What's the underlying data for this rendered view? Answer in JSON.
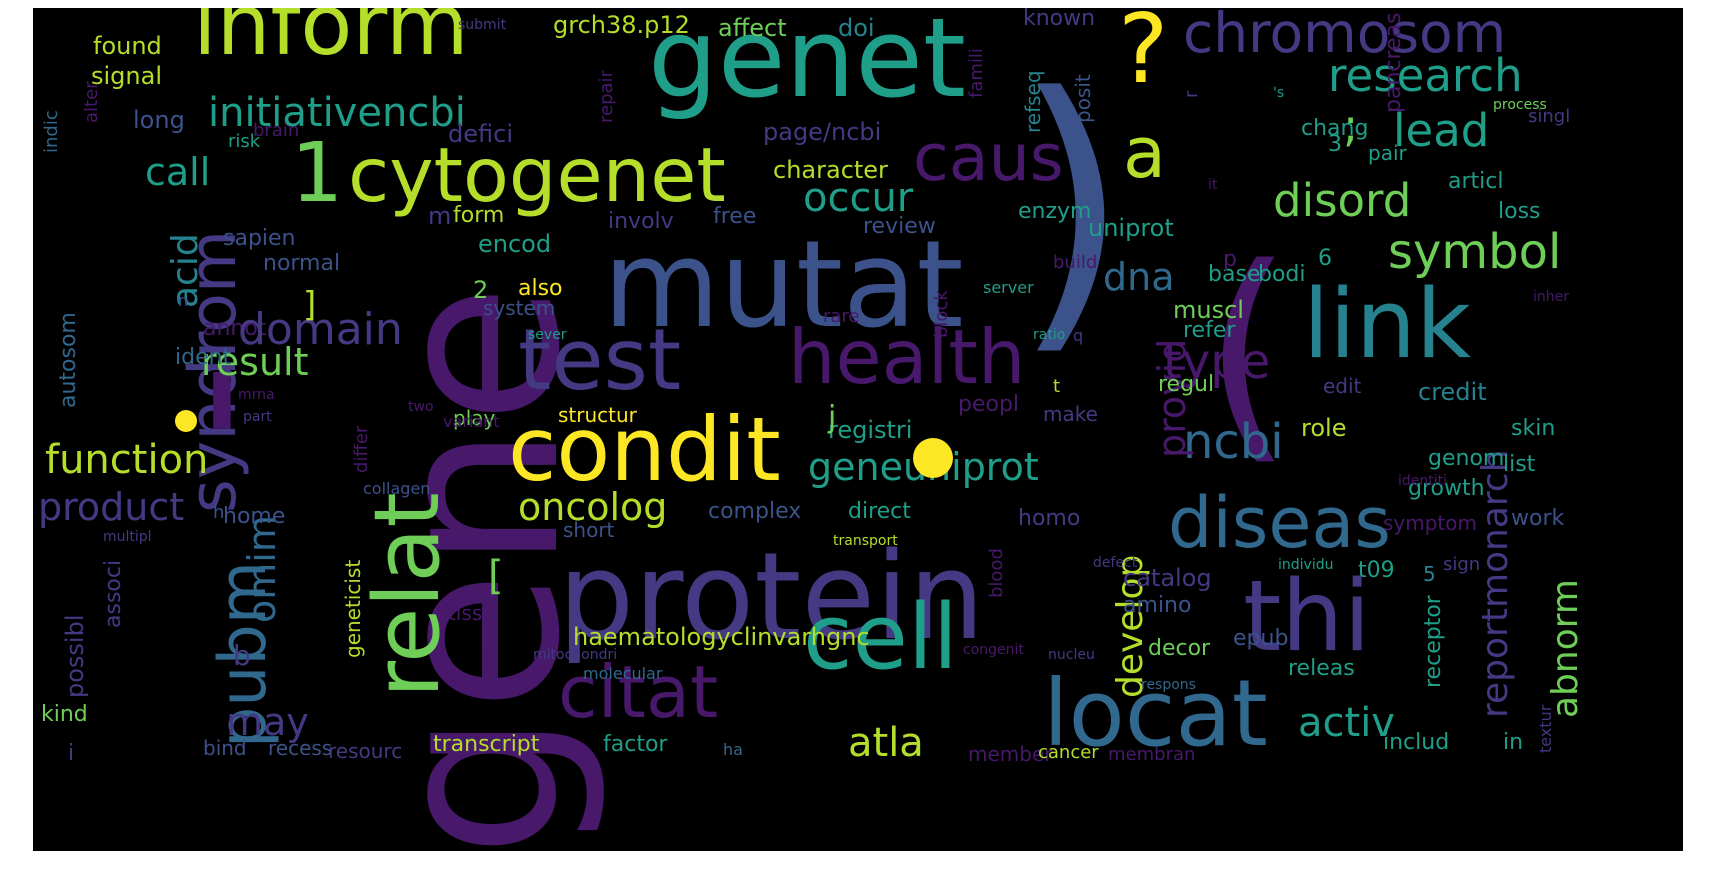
{
  "palette": {
    "purple": "#48186a",
    "indigo": "#443983",
    "blue": "#3b528b",
    "steel": "#31688e",
    "teal": "#26828e",
    "sea": "#1f9e89",
    "green": "#35b779",
    "lime": "#6ece58",
    "chartreuse": "#b5de2b",
    "yellow": "#fde725"
  },
  "words": [
    {
      "text": "gene",
      "color": "purple"
    },
    {
      "text": "mutat",
      "color": "blue"
    },
    {
      "text": "protein",
      "color": "indigo"
    },
    {
      "text": "genet",
      "color": "sea"
    },
    {
      "text": "inform",
      "color": "chartreuse"
    },
    {
      "text": "test",
      "color": "indigo"
    },
    {
      "text": "health",
      "color": "purple"
    },
    {
      "text": "condit",
      "color": "yellow"
    },
    {
      "text": "cytogenet",
      "color": "chartreuse"
    },
    {
      "text": "relat",
      "color": "lime"
    },
    {
      "text": "link",
      "color": "teal"
    },
    {
      "text": "thi",
      "color": "indigo"
    },
    {
      "text": "cell",
      "color": "sea"
    },
    {
      "text": "locat",
      "color": "steel"
    },
    {
      "text": "diseas",
      "color": "steel"
    },
    {
      "text": "citat",
      "color": "purple"
    },
    {
      "text": "caus",
      "color": "purple"
    },
    {
      "text": "pubm",
      "color": "steel"
    },
    {
      "text": "syndrom",
      "color": "indigo"
    },
    {
      "text": "chromosom",
      "color": "indigo"
    },
    {
      "text": "research",
      "color": "sea"
    },
    {
      "text": "?",
      "color": "yellow"
    },
    {
      "text": "(",
      "color": "purple"
    },
    {
      "text": ")",
      "color": "blue"
    },
    {
      "text": "a",
      "color": "chartreuse"
    },
    {
      "text": "'",
      "color": "purple"
    },
    {
      "text": "1",
      "color": "lime"
    },
    {
      "text": ";",
      "color": "lime"
    },
    {
      "text": "lead",
      "color": "sea"
    },
    {
      "text": "symbol",
      "color": "lime"
    },
    {
      "text": "disord",
      "color": "lime"
    },
    {
      "text": "initiativencbi",
      "color": "sea"
    },
    {
      "text": "call",
      "color": "sea"
    },
    {
      "text": "occur",
      "color": "sea"
    },
    {
      "text": "function",
      "color": "chartreuse"
    },
    {
      "text": "result",
      "color": "lime"
    },
    {
      "text": "product",
      "color": "indigo"
    },
    {
      "text": "oncolog",
      "color": "chartreuse"
    },
    {
      "text": "geneuniprot",
      "color": "sea"
    },
    {
      "text": "ncbi",
      "color": "steel"
    },
    {
      "text": "type",
      "color": "purple"
    },
    {
      "text": "provid",
      "color": "purple"
    },
    {
      "text": "dna",
      "color": "steel"
    },
    {
      "text": "omim",
      "color": "steel"
    },
    {
      "text": "may",
      "color": "indigo"
    },
    {
      "text": "atla",
      "color": "chartreuse"
    },
    {
      "text": "activ",
      "color": "sea"
    },
    {
      "text": "develop",
      "color": "chartreuse"
    },
    {
      "text": "reportmonarch",
      "color": "indigo"
    },
    {
      "text": "abnorm",
      "color": "lime"
    },
    {
      "text": "acid",
      "color": "teal"
    },
    {
      "text": "haematologyclinvarhgnc",
      "color": "chartreuse"
    },
    {
      "text": "catalog",
      "color": "indigo"
    },
    {
      "text": "grch38.p12",
      "color": "chartreuse"
    },
    {
      "text": "affect",
      "color": "lime"
    },
    {
      "text": "doi",
      "color": "teal"
    },
    {
      "text": "found",
      "color": "chartreuse"
    },
    {
      "text": "signal",
      "color": "chartreuse"
    },
    {
      "text": "long",
      "color": "blue"
    },
    {
      "text": "defici",
      "color": "indigo"
    },
    {
      "text": "page/ncbi",
      "color": "indigo"
    },
    {
      "text": "character",
      "color": "chartreuse"
    },
    {
      "text": "form",
      "color": "chartreuse"
    },
    {
      "text": "involv",
      "color": "indigo"
    },
    {
      "text": "free",
      "color": "blue"
    },
    {
      "text": "enzym",
      "color": "sea"
    },
    {
      "text": "uniprot",
      "color": "sea"
    },
    {
      "text": "encod",
      "color": "sea"
    },
    {
      "text": "sapien",
      "color": "blue"
    },
    {
      "text": "review",
      "color": "blue"
    },
    {
      "text": "normal",
      "color": "blue"
    },
    {
      "text": "also",
      "color": "yellow"
    },
    {
      "text": "system",
      "color": "blue"
    },
    {
      "text": "annot",
      "color": "purple"
    },
    {
      "text": "base",
      "color": "sea"
    },
    {
      "text": "bodi",
      "color": "sea"
    },
    {
      "text": "muscl",
      "color": "lime"
    },
    {
      "text": "refer",
      "color": "sea"
    },
    {
      "text": "regul",
      "color": "lime"
    },
    {
      "text": "credit",
      "color": "teal"
    },
    {
      "text": "edit",
      "color": "indigo"
    },
    {
      "text": "role",
      "color": "chartreuse"
    },
    {
      "text": "skin",
      "color": "sea"
    },
    {
      "text": "list",
      "color": "sea"
    },
    {
      "text": "genom",
      "color": "sea"
    },
    {
      "text": "growth",
      "color": "sea"
    },
    {
      "text": "work",
      "color": "blue"
    },
    {
      "text": "registri",
      "color": "sea"
    },
    {
      "text": "peopl",
      "color": "purple"
    },
    {
      "text": "structur",
      "color": "yellow"
    },
    {
      "text": "play",
      "color": "lime"
    },
    {
      "text": "complex",
      "color": "blue"
    },
    {
      "text": "direct",
      "color": "sea"
    },
    {
      "text": "home",
      "color": "blue"
    },
    {
      "text": "homo",
      "color": "indigo"
    },
    {
      "text": "short",
      "color": "blue"
    },
    {
      "text": "amino",
      "color": "blue"
    },
    {
      "text": "decor",
      "color": "lime"
    },
    {
      "text": "epub",
      "color": "blue"
    },
    {
      "text": "releas",
      "color": "sea"
    },
    {
      "text": "receptor",
      "color": "sea"
    },
    {
      "text": "t09",
      "color": "sea"
    },
    {
      "text": "includ",
      "color": "sea"
    },
    {
      "text": "in",
      "color": "sea"
    },
    {
      "text": "factor",
      "color": "sea"
    },
    {
      "text": "transcript",
      "color": "chartreuse"
    },
    {
      "text": "bind",
      "color": "blue"
    },
    {
      "text": "recess",
      "color": "blue"
    },
    {
      "text": "resourc",
      "color": "indigo"
    },
    {
      "text": "kind",
      "color": "lime"
    },
    {
      "text": "possibl",
      "color": "indigo"
    },
    {
      "text": "associ",
      "color": "indigo"
    },
    {
      "text": "geneticist",
      "color": "chartreuse"
    },
    {
      "text": "tissu",
      "color": "purple"
    },
    {
      "text": "autosom",
      "color": "steel"
    },
    {
      "text": "chang",
      "color": "sea"
    },
    {
      "text": "pair",
      "color": "sea"
    },
    {
      "text": "articl",
      "color": "sea"
    },
    {
      "text": "loss",
      "color": "sea"
    },
    {
      "text": "pancreas",
      "color": "purple"
    },
    {
      "text": "posit",
      "color": "blue"
    },
    {
      "text": "refseq",
      "color": "teal"
    },
    {
      "text": "famili",
      "color": "purple"
    },
    {
      "text": "known",
      "color": "indigo"
    },
    {
      "text": "risk",
      "color": "sea"
    },
    {
      "text": "brain",
      "color": "purple"
    },
    {
      "text": "alter",
      "color": "purple"
    },
    {
      "text": "indic",
      "color": "steel"
    },
    {
      "text": "repair",
      "color": "purple"
    },
    {
      "text": "blood",
      "color": "purple"
    },
    {
      "text": "symptom",
      "color": "purple"
    },
    {
      "text": "sign",
      "color": "indigo"
    },
    {
      "text": "build",
      "color": "purple"
    },
    {
      "text": "server",
      "color": "sea"
    },
    {
      "text": "block",
      "color": "purple"
    },
    {
      "text": "differ",
      "color": "purple"
    },
    {
      "text": "variant",
      "color": "purple"
    },
    {
      "text": "collagen",
      "color": "blue"
    },
    {
      "text": "member",
      "color": "purple"
    },
    {
      "text": "make",
      "color": "indigo"
    },
    {
      "text": "ha",
      "color": "steel"
    },
    {
      "text": "cancer",
      "color": "chartreuse"
    },
    {
      "text": "membran",
      "color": "purple"
    },
    {
      "text": "textur",
      "color": "indigo"
    },
    {
      "text": "defect",
      "color": "indigo"
    },
    {
      "text": "two",
      "color": "purple"
    },
    {
      "text": "identiti",
      "color": "purple"
    },
    {
      "text": "molecular",
      "color": "steel"
    },
    {
      "text": "produc",
      "color": "purple"
    },
    {
      "text": "multipl",
      "color": "indigo"
    },
    {
      "text": "transport",
      "color": "chartreuse"
    },
    {
      "text": "domain",
      "color": "indigo"
    },
    {
      "text": "[",
      "color": "lime"
    },
    {
      "text": "]",
      "color": "chartreuse"
    },
    {
      "text": "2",
      "color": "lime"
    },
    {
      "text": "3",
      "color": "sea"
    },
    {
      "text": "5",
      "color": "teal"
    },
    {
      "text": "6",
      "color": "sea"
    },
    {
      "text": "b",
      "color": "indigo"
    },
    {
      "text": "j",
      "color": "lime"
    },
    {
      "text": "m",
      "color": "indigo"
    },
    {
      "text": "p",
      "color": "purple"
    },
    {
      "text": "t",
      "color": "chartreuse"
    },
    {
      "text": "q",
      "color": "indigo"
    },
    {
      "text": "n",
      "color": "blue"
    },
    {
      "text": "h",
      "color": "blue"
    },
    {
      "text": "i",
      "color": "indigo"
    },
    {
      "text": "'s",
      "color": "sea"
    },
    {
      "text": "process",
      "color": "lime"
    },
    {
      "text": "singl",
      "color": "indigo"
    },
    {
      "text": "r",
      "color": "indigo"
    },
    {
      "text": "it",
      "color": "purple"
    },
    {
      "text": "submit",
      "color": "indigo"
    },
    {
      "text": "congenit",
      "color": "purple"
    },
    {
      "text": "mitochondri",
      "color": "indigo"
    },
    {
      "text": "nucleu",
      "color": "indigo"
    },
    {
      "text": "mrna",
      "color": "purple"
    },
    {
      "text": "part",
      "color": "indigo"
    },
    {
      "text": "individu",
      "color": "sea"
    },
    {
      "text": "ratio",
      "color": "sea"
    },
    {
      "text": "sever",
      "color": "sea"
    },
    {
      "text": "rare",
      "color": "purple"
    },
    {
      "text": "respons",
      "color": "steel"
    },
    {
      "text": "inher",
      "color": "purple"
    },
    {
      "text": "ident",
      "color": "steel"
    },
    {
      "text": "dot",
      "color": "yellow"
    },
    {
      "text": "dot",
      "color": "yellow"
    },
    {
      "text": "dot",
      "color": "indigo"
    }
  ]
}
